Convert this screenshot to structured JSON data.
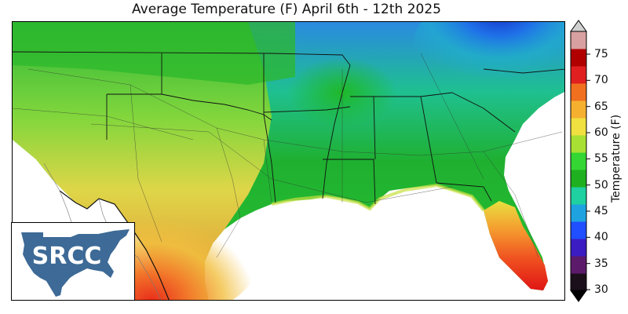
{
  "map": {
    "title": "Average Temperature (F) April 6th - 12th 2025",
    "region": "Southern United States",
    "variable": "Average Temperature",
    "units": "F",
    "period": "April 6th - 12th 2025"
  },
  "colorbar": {
    "label": "Temperature (F)",
    "min": 30,
    "max": 75,
    "ticks": [
      30,
      35,
      40,
      45,
      50,
      55,
      60,
      65,
      70,
      75
    ],
    "tick_labels": [
      "30",
      "35",
      "40",
      "45",
      "50",
      "55",
      "60",
      "65",
      "70",
      "75"
    ],
    "extend": "both",
    "colors": [
      "#1a0f1a",
      "#5c1a6b",
      "#3b1cc2",
      "#1f4fff",
      "#1fa3e0",
      "#1fd0a0",
      "#1fb020",
      "#33d633",
      "#a8e033",
      "#f0e040",
      "#f5b030",
      "#f07020",
      "#e02020",
      "#b00000",
      "#d8a0a0"
    ]
  },
  "logo": {
    "text": "SRCC"
  }
}
